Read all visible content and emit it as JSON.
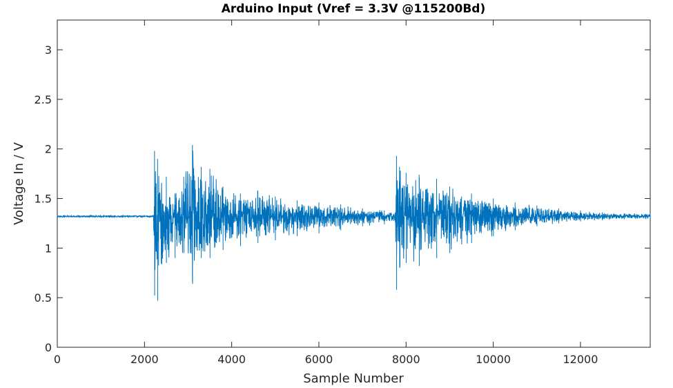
{
  "chart_data": {
    "type": "line",
    "title": "Arduino Input (Vref = 3.3V @115200Bd)",
    "xlabel": "Sample Number",
    "ylabel": "Voltage In / V",
    "xlim": [
      0,
      13600
    ],
    "ylim": [
      0,
      3.3
    ],
    "xticks": [
      0,
      2000,
      4000,
      6000,
      8000,
      10000,
      12000
    ],
    "yticks": [
      0,
      0.5,
      1,
      1.5,
      2,
      2.5,
      3
    ],
    "xtick_labels": [
      "0",
      "2000",
      "4000",
      "6000",
      "8000",
      "10000",
      "12000"
    ],
    "ytick_labels": [
      "0",
      "0.5",
      "1",
      "1.5",
      "2",
      "2.5",
      "3"
    ],
    "grid": false,
    "line_color": "#0072BD",
    "series": [
      {
        "name": "",
        "baseline": 1.32,
        "envelope": {
          "x": [
            0,
            2200,
            2230,
            2300,
            2500,
            2700,
            2900,
            3100,
            3300,
            3500,
            3800,
            4200,
            4600,
            5000,
            5500,
            6000,
            6500,
            7000,
            7500,
            7750,
            7780,
            7850,
            8000,
            8300,
            8700,
            9000,
            9500,
            10000,
            10500,
            11000,
            11500,
            12000,
            12500,
            13000,
            13600
          ],
          "max": [
            1.33,
            1.33,
            1.98,
            1.9,
            1.72,
            1.55,
            1.72,
            2.04,
            1.82,
            1.8,
            1.62,
            1.55,
            1.58,
            1.52,
            1.48,
            1.46,
            1.44,
            1.4,
            1.38,
            1.36,
            1.93,
            1.82,
            1.76,
            1.74,
            1.7,
            1.62,
            1.55,
            1.5,
            1.46,
            1.43,
            1.4,
            1.38,
            1.36,
            1.35,
            1.35
          ],
          "min": [
            1.31,
            1.31,
            0.52,
            0.47,
            0.85,
            0.9,
            0.95,
            0.64,
            0.9,
            0.9,
            0.98,
            1.02,
            1.05,
            1.08,
            1.12,
            1.15,
            1.18,
            1.22,
            1.24,
            1.26,
            0.58,
            0.8,
            0.85,
            0.82,
            0.9,
            0.95,
            1.05,
            1.12,
            1.18,
            1.22,
            1.25,
            1.27,
            1.28,
            1.29,
            1.29
          ]
        }
      }
    ]
  }
}
